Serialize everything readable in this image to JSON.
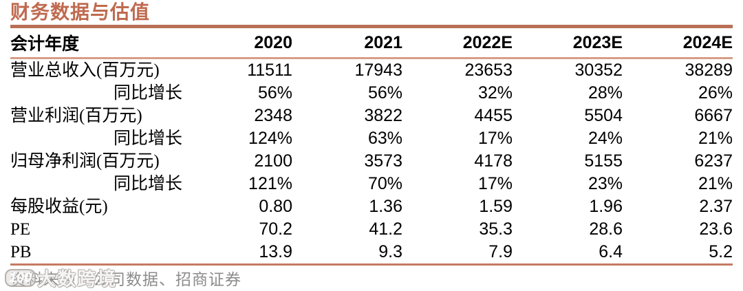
{
  "title": "财务数据与估值",
  "colors": {
    "accent_title": "#bf6a4f",
    "rule_thick": "#b96f56",
    "rule_thin": "#d69d86",
    "text": "#000000",
    "source_gray": "#8c8c8c"
  },
  "table": {
    "headers": [
      "会计年度",
      "2020",
      "2021",
      "2022E",
      "2023E",
      "2024E"
    ],
    "rows": [
      {
        "label": "营业总收入(百万元)",
        "indent": false,
        "values": [
          "11511",
          "17943",
          "23653",
          "30352",
          "38289"
        ]
      },
      {
        "label": "同比增长",
        "indent": true,
        "values": [
          "56%",
          "56%",
          "32%",
          "28%",
          "26%"
        ]
      },
      {
        "label": "营业利润(百万元)",
        "indent": false,
        "values": [
          "2348",
          "3822",
          "4455",
          "5504",
          "6667"
        ]
      },
      {
        "label": "同比增长",
        "indent": true,
        "values": [
          "124%",
          "63%",
          "17%",
          "24%",
          "21%"
        ]
      },
      {
        "label": "归母净利润(百万元)",
        "indent": false,
        "values": [
          "2100",
          "3573",
          "4178",
          "5155",
          "6237"
        ]
      },
      {
        "label": "同比增长",
        "indent": true,
        "values": [
          "121%",
          "70%",
          "17%",
          "23%",
          "21%"
        ]
      },
      {
        "label": "每股收益(元)",
        "indent": false,
        "values": [
          "0.80",
          "1.36",
          "1.59",
          "1.96",
          "2.37"
        ]
      },
      {
        "label": "PE",
        "indent": false,
        "values": [
          "70.2",
          "41.2",
          "35.3",
          "28.6",
          "23.6"
        ]
      },
      {
        "label": "PB",
        "indent": false,
        "values": [
          "13.9",
          "9.3",
          "7.9",
          "6.4",
          "5.2"
        ]
      }
    ]
  },
  "footer": {
    "source": "资料来源：公司数据、招商证券"
  },
  "watermark": {
    "logo": "100",
    "text": "大数跨境"
  }
}
